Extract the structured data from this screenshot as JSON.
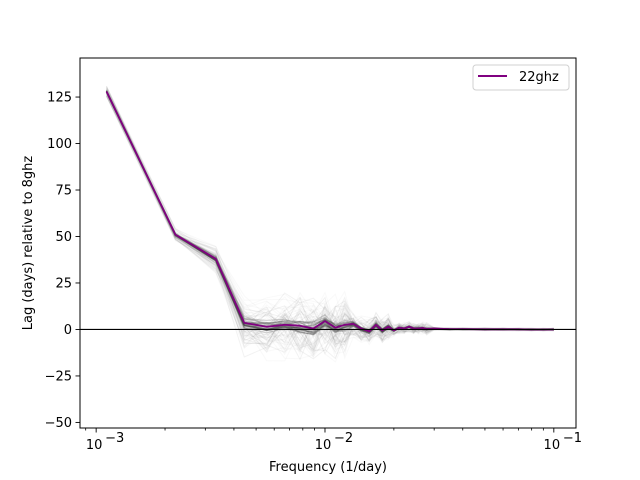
{
  "chart_data": {
    "type": "line",
    "xscale": "log",
    "xlabel": "Frequency (1/day)",
    "ylabel": "Lag (days) relative to 8ghz",
    "xlim": [
      0.00085,
      0.125
    ],
    "ylim": [
      -53,
      146
    ],
    "x_ticks": [
      {
        "value": 0.001,
        "base": "10",
        "exp": "−3"
      },
      {
        "value": 0.01,
        "base": "10",
        "exp": "−2"
      },
      {
        "value": 0.1,
        "base": "10",
        "exp": "−1"
      }
    ],
    "y_ticks": [
      {
        "value": 125,
        "label": "125"
      },
      {
        "value": 100,
        "label": "100"
      },
      {
        "value": 75,
        "label": "75"
      },
      {
        "value": 50,
        "label": "50"
      },
      {
        "value": 25,
        "label": "25"
      },
      {
        "value": 0,
        "label": "0"
      },
      {
        "value": -25,
        "label": "−25"
      },
      {
        "value": -50,
        "label": "−50"
      }
    ],
    "reference_line_y": 0,
    "legend_position": "top-right",
    "series": [
      {
        "name": "22ghz",
        "color": "#800080",
        "x": [
          0.00111,
          0.00222,
          0.00333,
          0.00444,
          0.00556,
          0.00667,
          0.00778,
          0.00889,
          0.01,
          0.0111,
          0.0122,
          0.0133,
          0.0144,
          0.0156,
          0.0167,
          0.0178,
          0.0189,
          0.02,
          0.0211,
          0.0222,
          0.0233,
          0.0244,
          0.0256,
          0.0267,
          0.0278,
          0.03,
          0.035,
          0.04,
          0.05,
          0.06,
          0.07,
          0.08,
          0.09,
          0.1
        ],
        "y": [
          128,
          51,
          38,
          3.5,
          1.5,
          2.5,
          2.0,
          0.5,
          4.5,
          1.0,
          2.5,
          3.0,
          0.5,
          -1.0,
          2.5,
          -0.5,
          1.5,
          -0.5,
          1.0,
          0.5,
          1.5,
          0.5,
          0.5,
          0.8,
          0.3,
          0.5,
          0.2,
          0.2,
          0.1,
          0.1,
          0.1,
          0.0,
          0.0,
          0.0
        ]
      }
    ],
    "ensemble": {
      "color": "#808080",
      "note_color": "#404040"
    }
  }
}
